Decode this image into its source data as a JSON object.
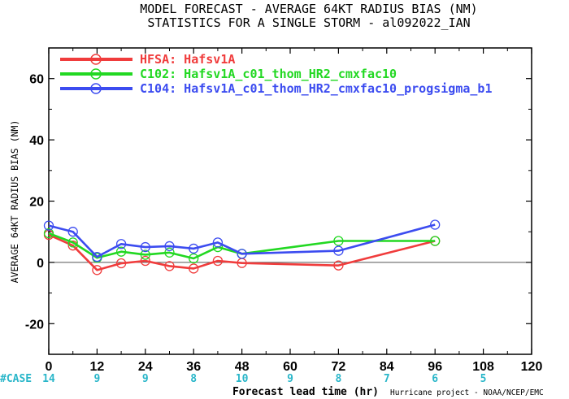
{
  "title_line1": "MODEL FORECAST - AVERAGE 64KT RADIUS BIAS (NM)",
  "title_line2": "STATISTICS FOR A SINGLE STORM - al092022_IAN",
  "credit": "Hurricane project - NOAA/NCEP/EMC",
  "case_label": "#CASE",
  "chart_data": {
    "type": "line",
    "xlabel": "Forecast lead time (hr)",
    "ylabel": "AVERAGE 64KT RADIUS BIAS (NM)",
    "xlim": [
      0,
      120
    ],
    "ylim": [
      -30,
      70
    ],
    "xticks": [
      0,
      12,
      24,
      36,
      48,
      60,
      72,
      84,
      96,
      108,
      120
    ],
    "yticks": [
      -20,
      0,
      20,
      40,
      60
    ],
    "zero_line": true,
    "grid": false,
    "legend_position": "top-left",
    "cases": [
      {
        "x": 0,
        "n": "14"
      },
      {
        "x": 12,
        "n": "9"
      },
      {
        "x": 24,
        "n": "9"
      },
      {
        "x": 36,
        "n": "8"
      },
      {
        "x": 48,
        "n": "10"
      },
      {
        "x": 60,
        "n": "9"
      },
      {
        "x": 72,
        "n": "8"
      },
      {
        "x": 84,
        "n": "7"
      },
      {
        "x": 96,
        "n": "6"
      },
      {
        "x": 108,
        "n": "5"
      }
    ],
    "series": [
      {
        "name": "HFSA: Hafsv1A",
        "color": "#f03c3c",
        "points": [
          [
            0,
            9
          ],
          [
            6,
            5.5
          ],
          [
            12,
            -2.5
          ],
          [
            18,
            -0.3
          ],
          [
            24,
            0.5
          ],
          [
            30,
            -1.2
          ],
          [
            36,
            -2
          ],
          [
            42,
            0.5
          ],
          [
            48,
            -0.2
          ],
          [
            72,
            -1
          ],
          [
            96,
            7
          ]
        ]
      },
      {
        "name": "C102: Hafsv1A_c01_thom_HR2_cmxfac10",
        "color": "#22d822",
        "points": [
          [
            0,
            9.5
          ],
          [
            6,
            6.5
          ],
          [
            12,
            1.5
          ],
          [
            18,
            3.5
          ],
          [
            24,
            2.5
          ],
          [
            30,
            3.2
          ],
          [
            36,
            1.3
          ],
          [
            42,
            5
          ],
          [
            48,
            2.8
          ],
          [
            72,
            7
          ],
          [
            96,
            7
          ]
        ]
      },
      {
        "name": "C104: Hafsv1A_c01_thom_HR2_cmxfac10_progsigma_b1",
        "color": "#3c4cf0",
        "points": [
          [
            0,
            12
          ],
          [
            6,
            10
          ],
          [
            12,
            1.8
          ],
          [
            18,
            6
          ],
          [
            24,
            5
          ],
          [
            30,
            5.3
          ],
          [
            36,
            4.5
          ],
          [
            42,
            6.5
          ],
          [
            48,
            2.8
          ],
          [
            72,
            3.8
          ],
          [
            96,
            12.3
          ]
        ]
      }
    ]
  }
}
